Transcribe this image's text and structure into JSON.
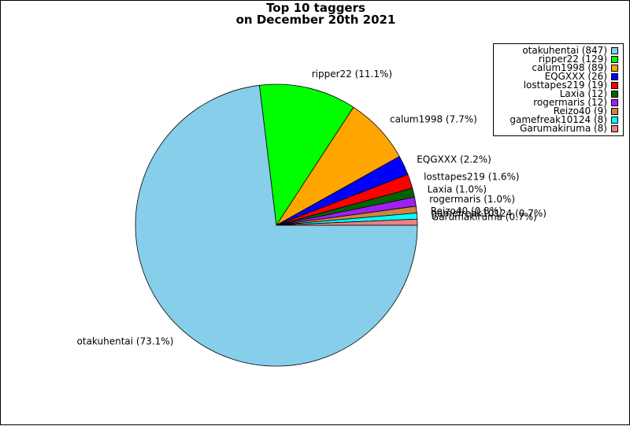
{
  "chart_data": {
    "type": "pie",
    "title": [
      "Top 10 taggers",
      "on December 20th 2021"
    ],
    "slices": [
      {
        "name": "otakuhentai",
        "value": 847,
        "percent": "73.1%",
        "color": "#87ceeb"
      },
      {
        "name": "ripper22",
        "value": 129,
        "percent": "11.1%",
        "color": "#00ff00"
      },
      {
        "name": "calum1998",
        "value": 89,
        "percent": "7.7%",
        "color": "#ffa500"
      },
      {
        "name": "EQGXXX",
        "value": 26,
        "percent": "2.2%",
        "color": "#0000ff"
      },
      {
        "name": "losttapes219",
        "value": 19,
        "percent": "1.6%",
        "color": "#ff0000"
      },
      {
        "name": "Laxia",
        "value": 12,
        "percent": "1.0%",
        "color": "#006400"
      },
      {
        "name": "rogermaris",
        "value": 12,
        "percent": "1.0%",
        "color": "#a020f0"
      },
      {
        "name": "Reizo40",
        "value": 9,
        "percent": "0.8%",
        "color": "#cd853f"
      },
      {
        "name": "gamefreak10124",
        "value": 8,
        "percent": "0.7%",
        "color": "#00ffff"
      },
      {
        "name": "Garumakiruma",
        "value": 8,
        "percent": "0.7%",
        "color": "#f08080"
      }
    ],
    "legend_position": "top-right"
  }
}
